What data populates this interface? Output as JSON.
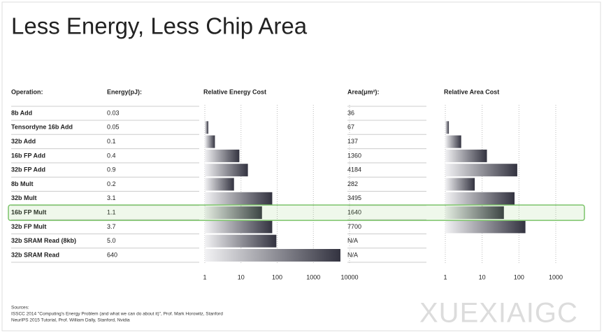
{
  "title": "Less Energy, Less Chip Area",
  "table": {
    "headers": [
      "Operation:",
      "Energy(pJ):",
      "Area(μm²):"
    ],
    "rows": [
      [
        "8b Add",
        "0.03",
        "36"
      ],
      [
        "Tensordyne 16b Add",
        "0.05",
        "67"
      ],
      [
        "32b Add",
        "0.1",
        "137"
      ],
      [
        "16b FP Add",
        "0.4",
        "1360"
      ],
      [
        "32b FP Add",
        "0.9",
        "4184"
      ],
      [
        "8b Mult",
        "0.2",
        "282"
      ],
      [
        "32b Mult",
        "3.1",
        "3495"
      ],
      [
        "16b FP Mult",
        "1.1",
        "1640"
      ],
      [
        "32b FP Mult",
        "3.7",
        "7700"
      ],
      [
        "32b SRAM Read (8kb)",
        "5.0",
        "N/A"
      ],
      [
        "32b SRAM Read",
        "640",
        "N/A"
      ]
    ],
    "highlight_row": 7
  },
  "chart_data": [
    {
      "type": "bar",
      "title": "Relative Energy Cost",
      "values": [
        1,
        1.25,
        1.9,
        9,
        15.5,
        6.4,
        73,
        38,
        73,
        95,
        5600
      ],
      "log_scale": true,
      "xlim": [
        1,
        10000
      ],
      "xticks": [
        1,
        10,
        100,
        1000,
        10000
      ],
      "grid": true,
      "color": "#3a3a48"
    },
    {
      "type": "bar",
      "title": "Relative Area Cost",
      "values": [
        1,
        1.25,
        2.7,
        13.5,
        90,
        6.3,
        76,
        39,
        150,
        null,
        null
      ],
      "log_scale": true,
      "xlim": [
        1,
        1000
      ],
      "xticks": [
        1,
        10,
        100,
        1000
      ],
      "grid": true,
      "color": "#3a3a48"
    }
  ],
  "sources": [
    "Sources:",
    "ISSCC 2014 \"Computing's Energy Problem (and what we can do about it)\", Prof. Mark Horowitz, Stanford",
    "NeurIPS 2015 Tutorial, Prof. William Dally, Stanford, Nvidia"
  ],
  "watermark": "XUEXIAIGC"
}
